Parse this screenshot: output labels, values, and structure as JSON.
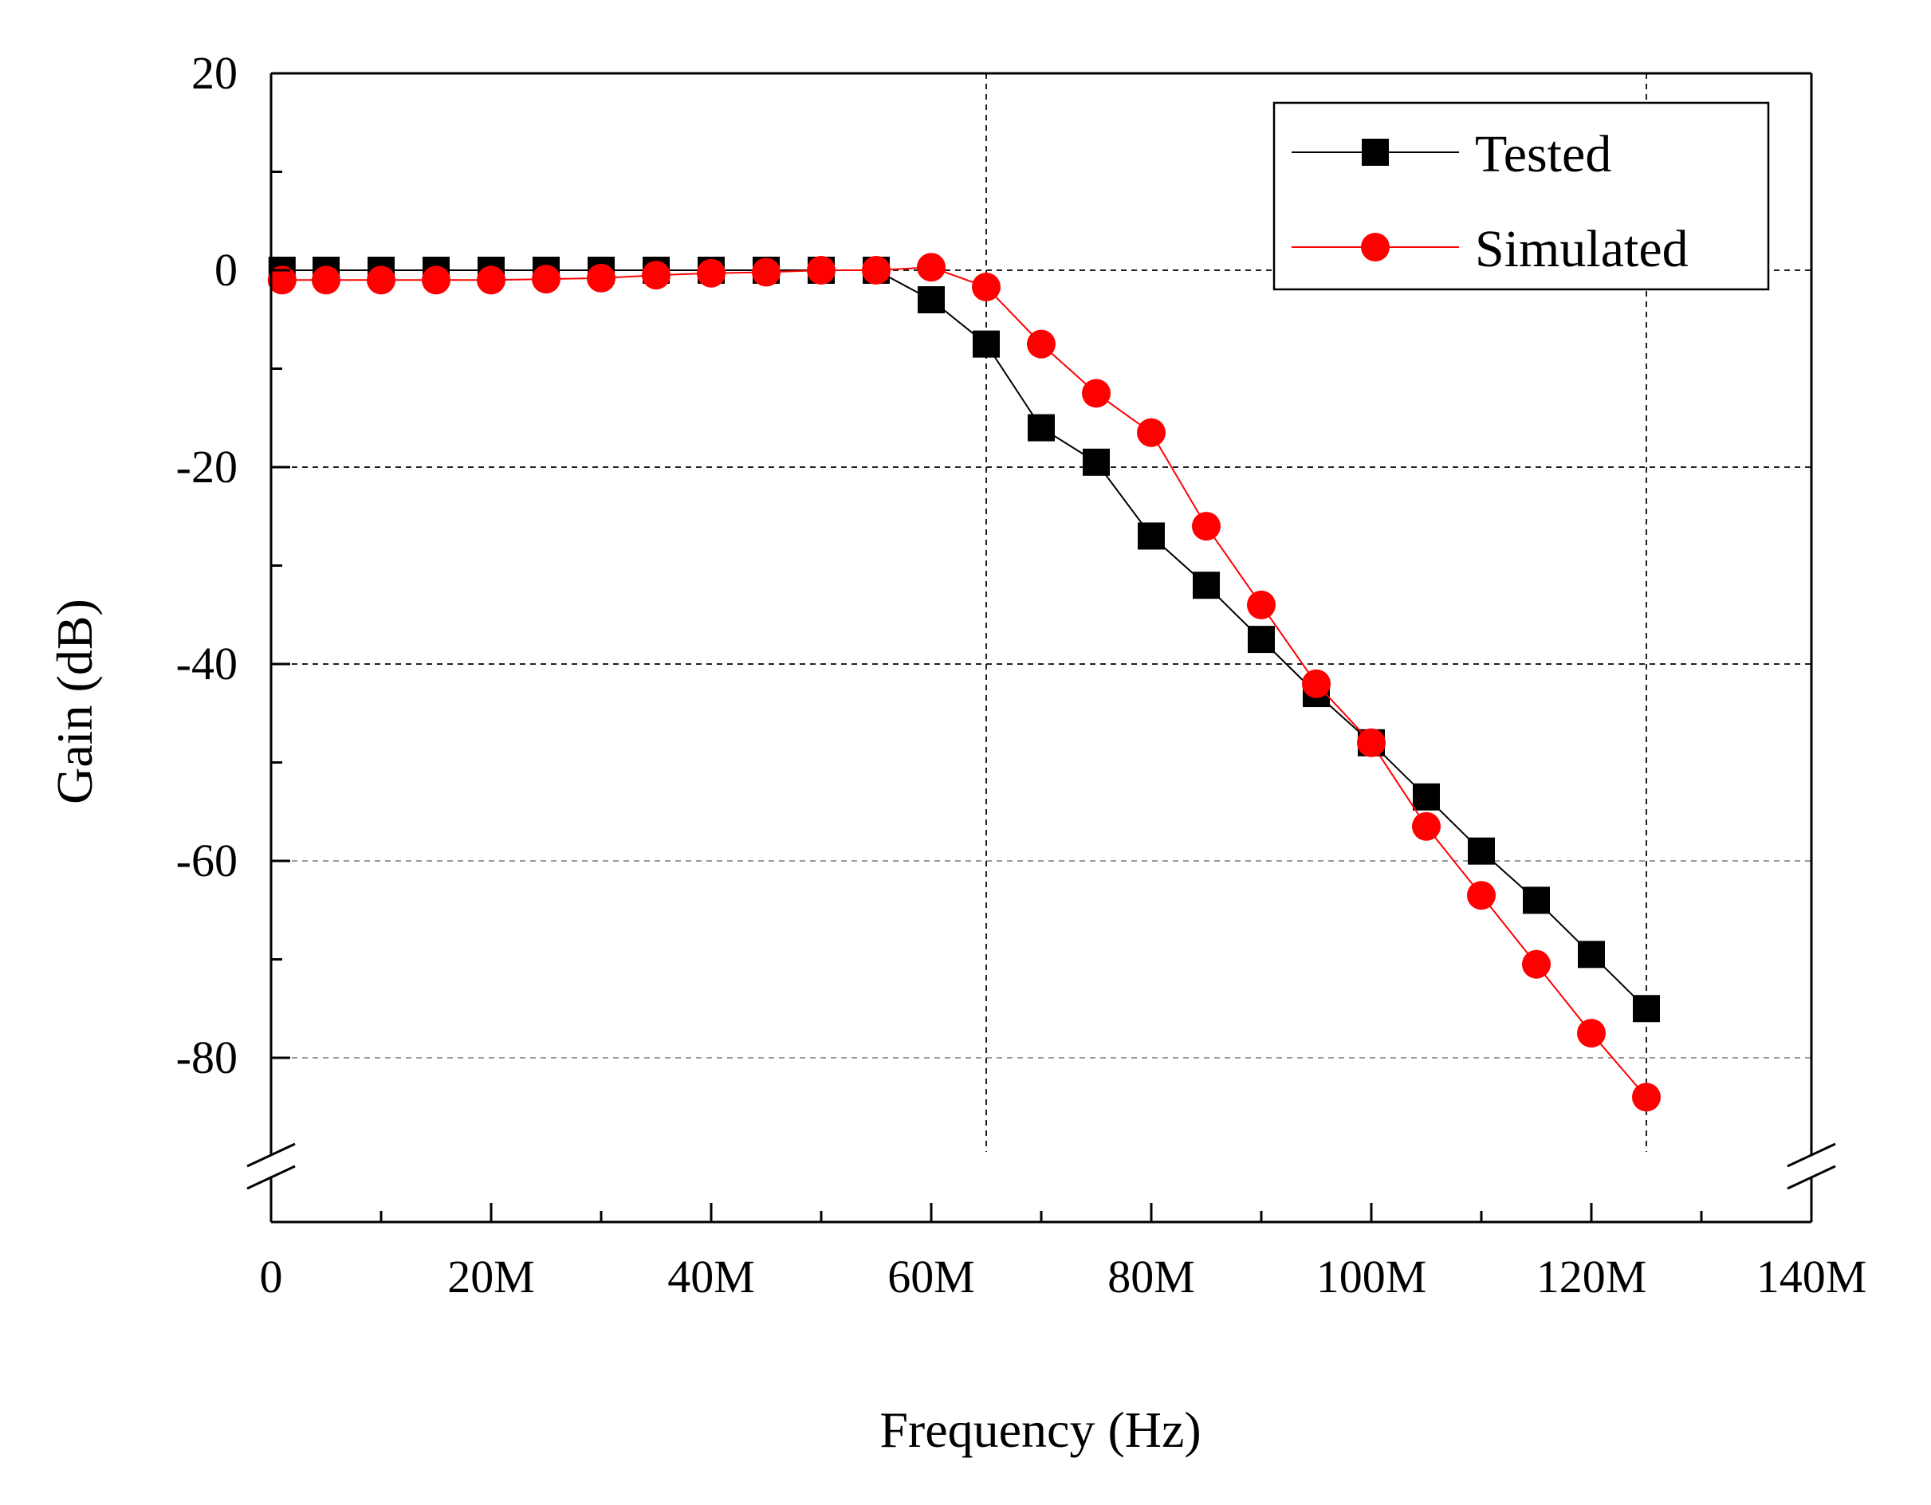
{
  "chart_data": {
    "type": "line",
    "title": "",
    "xlabel": "Frequency (Hz)",
    "ylabel": "Gain (dB)",
    "xlim": [
      0,
      140000000
    ],
    "ylim": [
      -90,
      20
    ],
    "axis_break": "y-axis below -80",
    "grid": "dashed lines at y = 0, -20, -40, -60, -80 and x = 65M, 125M",
    "legend_position": "top-right",
    "x_ticks": [
      {
        "value": 0,
        "label": "0"
      },
      {
        "value": 20000000,
        "label": "20M"
      },
      {
        "value": 40000000,
        "label": "40M"
      },
      {
        "value": 60000000,
        "label": "60M"
      },
      {
        "value": 80000000,
        "label": "80M"
      },
      {
        "value": 100000000,
        "label": "100M"
      },
      {
        "value": 120000000,
        "label": "120M"
      },
      {
        "value": 140000000,
        "label": "140M"
      }
    ],
    "y_ticks": [
      {
        "value": 20,
        "label": "20"
      },
      {
        "value": 0,
        "label": "0"
      },
      {
        "value": -20,
        "label": "-20"
      },
      {
        "value": -40,
        "label": "-40"
      },
      {
        "value": -60,
        "label": "-60"
      },
      {
        "value": -80,
        "label": "-80"
      }
    ],
    "grid_y": [
      0,
      -20,
      -40,
      -60,
      -80
    ],
    "grid_x": [
      65000000,
      125000000
    ],
    "series": [
      {
        "name": "Tested",
        "color": "#000000",
        "marker": "square",
        "x": [
          1000000,
          5000000,
          10000000,
          15000000,
          20000000,
          25000000,
          30000000,
          35000000,
          40000000,
          45000000,
          50000000,
          55000000,
          60000000,
          65000000,
          70000000,
          75000000,
          80000000,
          85000000,
          90000000,
          95000000,
          100000000,
          105000000,
          110000000,
          115000000,
          120000000,
          125000000
        ],
        "values": [
          0,
          0,
          0,
          0,
          0,
          0,
          0,
          0,
          0,
          0,
          0,
          0,
          -3,
          -7.5,
          -16,
          -19.5,
          -27,
          -32,
          -37.5,
          -43,
          -48,
          -53.5,
          -59,
          -64,
          -69.5,
          -75
        ]
      },
      {
        "name": "Simulated",
        "color": "#ff0000",
        "marker": "circle",
        "x": [
          1000000,
          5000000,
          10000000,
          15000000,
          20000000,
          25000000,
          30000000,
          35000000,
          40000000,
          45000000,
          50000000,
          55000000,
          60000000,
          65000000,
          70000000,
          75000000,
          80000000,
          85000000,
          90000000,
          95000000,
          100000000,
          105000000,
          110000000,
          115000000,
          120000000,
          125000000
        ],
        "values": [
          -1,
          -1,
          -1,
          -1,
          -1,
          -0.9,
          -0.8,
          -0.5,
          -0.3,
          -0.2,
          0,
          0,
          0.3,
          -1.7,
          -7.5,
          -12.5,
          -16.5,
          -26,
          -34,
          -42,
          -48,
          -56.5,
          -63.5,
          -70.5,
          -77.5,
          -84
        ]
      }
    ]
  }
}
